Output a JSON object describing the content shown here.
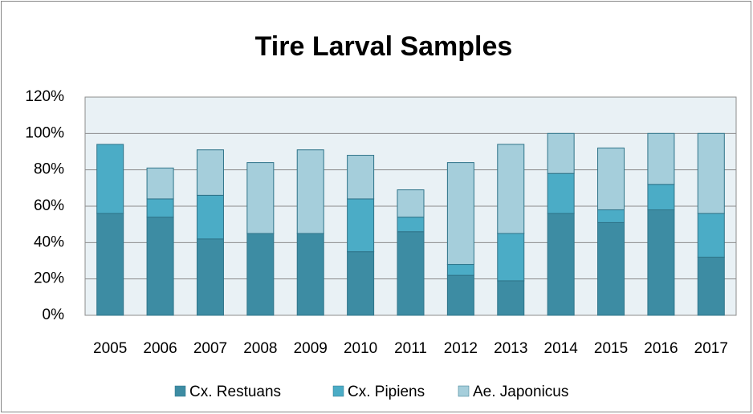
{
  "chart_data": {
    "type": "stacked_bar",
    "title": "Tire Larval Samples",
    "categories": [
      "2005",
      "2006",
      "2007",
      "2008",
      "2009",
      "2010",
      "2011",
      "2012",
      "2013",
      "2014",
      "2015",
      "2016",
      "2017"
    ],
    "series": [
      {
        "name": "Cx. Restuans",
        "color": "#3d8ca3",
        "values": [
          56,
          54,
          42,
          45,
          45,
          35,
          46,
          22,
          19,
          56,
          51,
          58,
          32
        ]
      },
      {
        "name": "Cx. Pipiens",
        "color": "#4bacc6",
        "values": [
          38,
          10,
          24,
          0,
          0,
          29,
          8,
          6,
          26,
          22,
          7,
          14,
          24
        ]
      },
      {
        "name": "Ae. Japonicus",
        "color": "#a5cedb",
        "values": [
          0,
          17,
          25,
          39,
          46,
          24,
          15,
          56,
          49,
          22,
          34,
          28,
          44
        ]
      }
    ],
    "ylim": [
      0,
      120
    ],
    "yticks": [
      {
        "value": 0,
        "label": "0%"
      },
      {
        "value": 20,
        "label": "20%"
      },
      {
        "value": 40,
        "label": "40%"
      },
      {
        "value": 60,
        "label": "60%"
      },
      {
        "value": 80,
        "label": "80%"
      },
      {
        "value": 100,
        "label": "100%"
      },
      {
        "value": 120,
        "label": "120%"
      }
    ],
    "grid": true,
    "legend": "bottom"
  }
}
